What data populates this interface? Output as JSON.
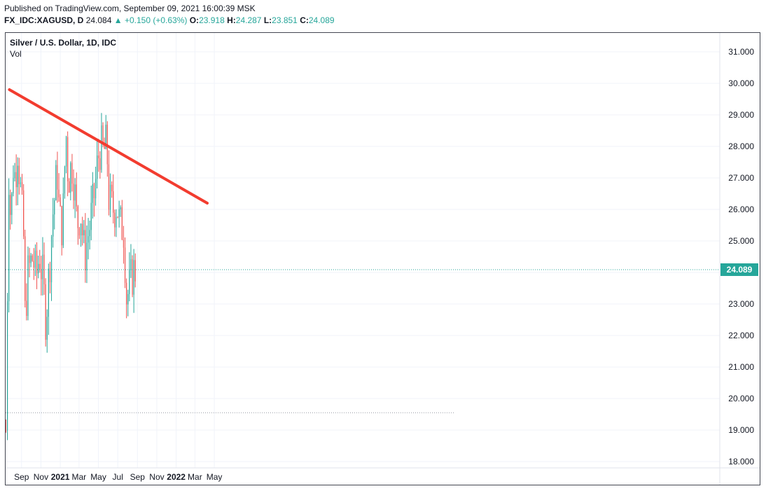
{
  "header": {
    "published": "Published on TradingView.com, September 09, 2021 16:00:39 MSK",
    "symbol": "FX_IDC:XAGUSD, D",
    "last": "24.084",
    "change": "+0.150 (+0.63%)",
    "o_label": "O:",
    "o_value": "23.918",
    "h_label": "H:",
    "h_value": "24.287",
    "l_label": "L:",
    "l_value": "23.851",
    "c_label": "C:",
    "c_value": "24.089"
  },
  "legend": {
    "title": "Silver / U.S. Dollar, 1D, IDC",
    "volume": "Vol"
  },
  "colors": {
    "up": "#26a69a",
    "down": "#ef5350",
    "trendline": "#f23c2f",
    "grid": "#f0f3fa",
    "price_label_bg": "#26a69a"
  },
  "chart_data": {
    "type": "candlestick",
    "title": "Silver / U.S. Dollar, 1D, IDC",
    "y_ticks": [
      "31.000",
      "30.000",
      "29.000",
      "28.000",
      "27.000",
      "26.000",
      "25.000",
      "24.000",
      "23.000",
      "22.000",
      "21.000",
      "20.000",
      "19.000",
      "18.000"
    ],
    "ylim": [
      17.8,
      31.6
    ],
    "x_ticks": [
      "Sep",
      "Nov",
      "2021",
      "Mar",
      "May",
      "Jul",
      "Sep",
      "Nov",
      "2022",
      "Mar",
      "May"
    ],
    "x_ticks_bold": [
      "2021",
      "2022"
    ],
    "last_price": "24.089",
    "trendline": {
      "start": {
        "date": "2020-08-07",
        "price": 29.8
      },
      "end": {
        "date": "2022-04-22",
        "price": 26.2
      }
    },
    "reference_level": 19.55,
    "approx_close_path": [
      [
        "2020-07-27",
        19.0
      ],
      [
        "2020-07-31",
        23.0
      ],
      [
        "2020-08-07",
        28.5
      ],
      [
        "2020-08-11",
        25.0
      ],
      [
        "2020-08-18",
        27.5
      ],
      [
        "2020-08-25",
        27.0
      ],
      [
        "2020-09-02",
        28.0
      ],
      [
        "2020-09-10",
        26.8
      ],
      [
        "2020-09-21",
        25.0
      ],
      [
        "2020-09-24",
        22.5
      ],
      [
        "2020-10-05",
        24.0
      ],
      [
        "2020-10-20",
        24.5
      ],
      [
        "2020-10-30",
        23.8
      ],
      [
        "2020-11-09",
        24.6
      ],
      [
        "2020-11-20",
        23.8
      ],
      [
        "2020-11-30",
        22.5
      ],
      [
        "2020-12-10",
        24.0
      ],
      [
        "2020-12-21",
        25.8
      ],
      [
        "2021-01-05",
        27.2
      ],
      [
        "2021-01-12",
        25.6
      ],
      [
        "2021-01-22",
        25.5
      ],
      [
        "2021-02-01",
        28.5
      ],
      [
        "2021-02-08",
        27.0
      ],
      [
        "2021-02-22",
        27.5
      ],
      [
        "2021-03-08",
        25.5
      ],
      [
        "2021-03-19",
        26.0
      ],
      [
        "2021-03-31",
        24.5
      ],
      [
        "2021-04-12",
        25.2
      ],
      [
        "2021-04-26",
        26.0
      ],
      [
        "2021-05-10",
        27.3
      ],
      [
        "2021-05-18",
        28.0
      ],
      [
        "2021-05-28",
        27.8
      ],
      [
        "2021-06-10",
        28.0
      ],
      [
        "2021-06-17",
        26.2
      ],
      [
        "2021-06-28",
        26.0
      ],
      [
        "2021-07-12",
        26.2
      ],
      [
        "2021-07-21",
        25.4
      ],
      [
        "2021-07-29",
        25.5
      ],
      [
        "2021-08-04",
        25.3
      ],
      [
        "2021-08-09",
        23.2
      ],
      [
        "2021-08-19",
        23.4
      ],
      [
        "2021-08-30",
        24.0
      ],
      [
        "2021-09-09",
        24.089
      ]
    ]
  }
}
